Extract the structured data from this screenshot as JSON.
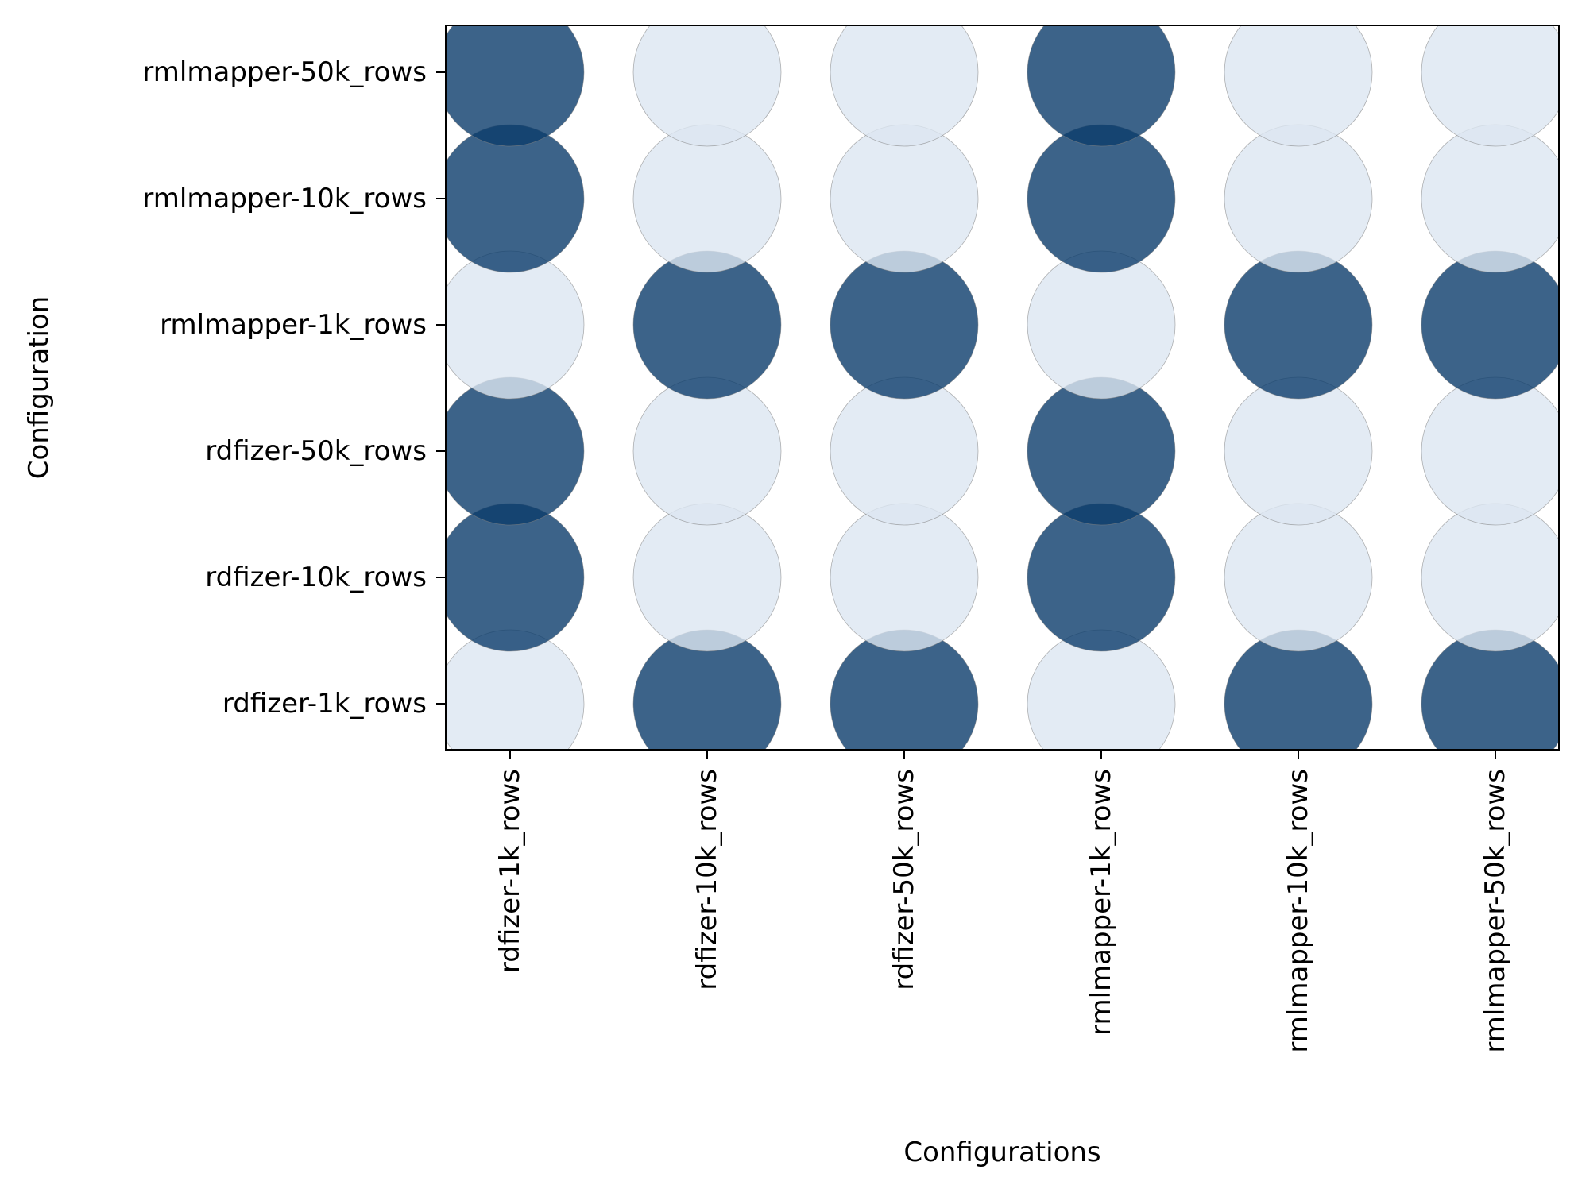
{
  "chart_data": {
    "type": "scatter",
    "subtype": "bubble-matrix",
    "title": "",
    "xlabel": "Configurations",
    "ylabel": "Configuration",
    "x_categories": [
      "rdfizer-1k_rows",
      "rdfizer-10k_rows",
      "rdfizer-50k_rows",
      "rmlmapper-1k_rows",
      "rmlmapper-10k_rows",
      "rmlmapper-50k_rows"
    ],
    "y_categories": [
      "rdfizer-1k_rows",
      "rdfizer-10k_rows",
      "rdfizer-50k_rows",
      "rmlmapper-1k_rows",
      "rmlmapper-10k_rows",
      "rmlmapper-50k_rows"
    ],
    "values": [
      [
        0,
        1,
        1,
        0,
        1,
        1
      ],
      [
        1,
        0,
        0,
        1,
        0,
        0
      ],
      [
        1,
        0,
        0,
        1,
        0,
        0
      ],
      [
        0,
        1,
        1,
        0,
        1,
        1
      ],
      [
        1,
        0,
        0,
        1,
        0,
        0
      ],
      [
        1,
        0,
        0,
        1,
        0,
        0
      ]
    ],
    "values_note_rows": "row index = y category (bottom to top), column index = x category",
    "colors": {
      "high": "#0b3c6b",
      "low": "#dce6f1",
      "edge": "#808080"
    },
    "marker_alpha": 0.8,
    "grid": false,
    "legend": "none"
  }
}
